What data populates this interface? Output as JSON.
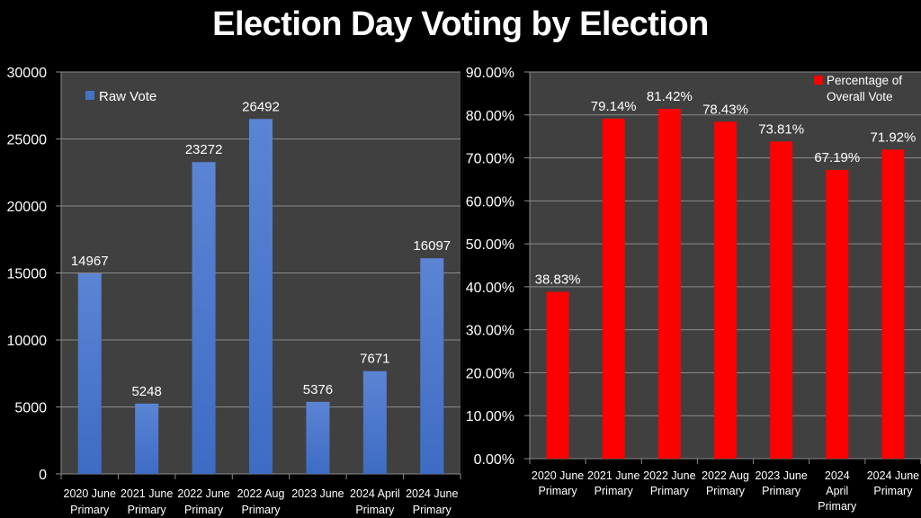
{
  "title": "Election Day Voting by Election",
  "chart_data": [
    {
      "type": "bar",
      "title": "",
      "categories": [
        [
          "2020 June",
          "Primary"
        ],
        [
          "2021 June",
          "Primary"
        ],
        [
          "2022 June",
          "Primary"
        ],
        [
          "2022 Aug",
          "Primary"
        ],
        [
          "2023 June",
          ""
        ],
        [
          "2024 April",
          "Primary"
        ],
        [
          "2024 June",
          "Primary"
        ]
      ],
      "series": [
        {
          "name": "Raw Vote",
          "values": [
            14967,
            5248,
            23272,
            26492,
            5376,
            7671,
            16097
          ],
          "color": "#4472C4"
        }
      ],
      "data_labels": [
        "14967",
        "5248",
        "23272",
        "26492",
        "5376",
        "7671",
        "16097"
      ],
      "xlabel": "",
      "ylabel": "",
      "ylim": [
        0,
        30000
      ],
      "yticks": [
        0,
        5000,
        10000,
        15000,
        20000,
        25000,
        30000
      ],
      "ytick_labels": [
        "0",
        "5000",
        "10000",
        "15000",
        "20000",
        "25000",
        "30000"
      ],
      "grid": true,
      "legend": "top-left",
      "plot_background": "#404040"
    },
    {
      "type": "bar",
      "title": "",
      "categories": [
        [
          "2020 June",
          "Primary"
        ],
        [
          "2021 June",
          "Primary"
        ],
        [
          "2022 June",
          "Primary"
        ],
        [
          "2022 Aug",
          "Primary"
        ],
        [
          "2023 June",
          "Primary"
        ],
        [
          "2024",
          "April",
          "Primary"
        ],
        [
          "2024 June",
          "Primary"
        ]
      ],
      "series": [
        {
          "name": "Percentage of Overall Vote",
          "name_lines": [
            "Percentage of",
            "Overall Vote"
          ],
          "values": [
            38.83,
            79.14,
            81.42,
            78.43,
            73.81,
            67.19,
            71.92
          ],
          "color": "#FF0000"
        }
      ],
      "data_labels": [
        "38.83%",
        "79.14%",
        "81.42%",
        "78.43%",
        "73.81%",
        "67.19%",
        "71.92%"
      ],
      "xlabel": "",
      "ylabel": "",
      "ylim": [
        0,
        90
      ],
      "yticks": [
        0,
        10,
        20,
        30,
        40,
        50,
        60,
        70,
        80,
        90
      ],
      "ytick_labels": [
        "0.00%",
        "10.00%",
        "20.00%",
        "30.00%",
        "40.00%",
        "50.00%",
        "60.00%",
        "70.00%",
        "80.00%",
        "90.00%"
      ],
      "grid": true,
      "legend": "top-right",
      "plot_background": "#404040"
    }
  ]
}
